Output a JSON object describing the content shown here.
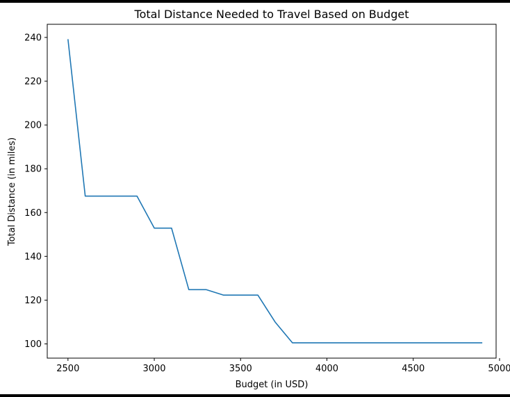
{
  "chart_data": {
    "type": "line",
    "title": "Total Distance Needed to Travel Based on Budget",
    "xlabel": "Budget (in USD)",
    "ylabel": "Total Distance (in miles)",
    "xlim": [
      2380,
      4980
    ],
    "ylim": [
      93.5,
      246
    ],
    "xticks": [
      2500,
      3000,
      3500,
      4000,
      4500,
      5000
    ],
    "yticks": [
      100,
      120,
      140,
      160,
      180,
      200,
      220,
      240
    ],
    "grid": false,
    "legend": "none",
    "series": [
      {
        "color": "#1f77b4",
        "x": [
          2500,
          2600,
          2700,
          2800,
          2900,
          3000,
          3100,
          3200,
          3300,
          3400,
          3500,
          3600,
          3700,
          3800,
          3900,
          4000,
          4100,
          4200,
          4300,
          4400,
          4500,
          4600,
          4700,
          4800,
          4900
        ],
        "y": [
          239.2,
          167.5,
          167.5,
          167.5,
          167.5,
          152.9,
          152.9,
          124.8,
          124.8,
          122.3,
          122.3,
          122.3,
          110.0,
          100.5,
          100.5,
          100.5,
          100.5,
          100.5,
          100.5,
          100.5,
          100.5,
          100.5,
          100.5,
          100.5,
          100.5
        ]
      }
    ]
  }
}
